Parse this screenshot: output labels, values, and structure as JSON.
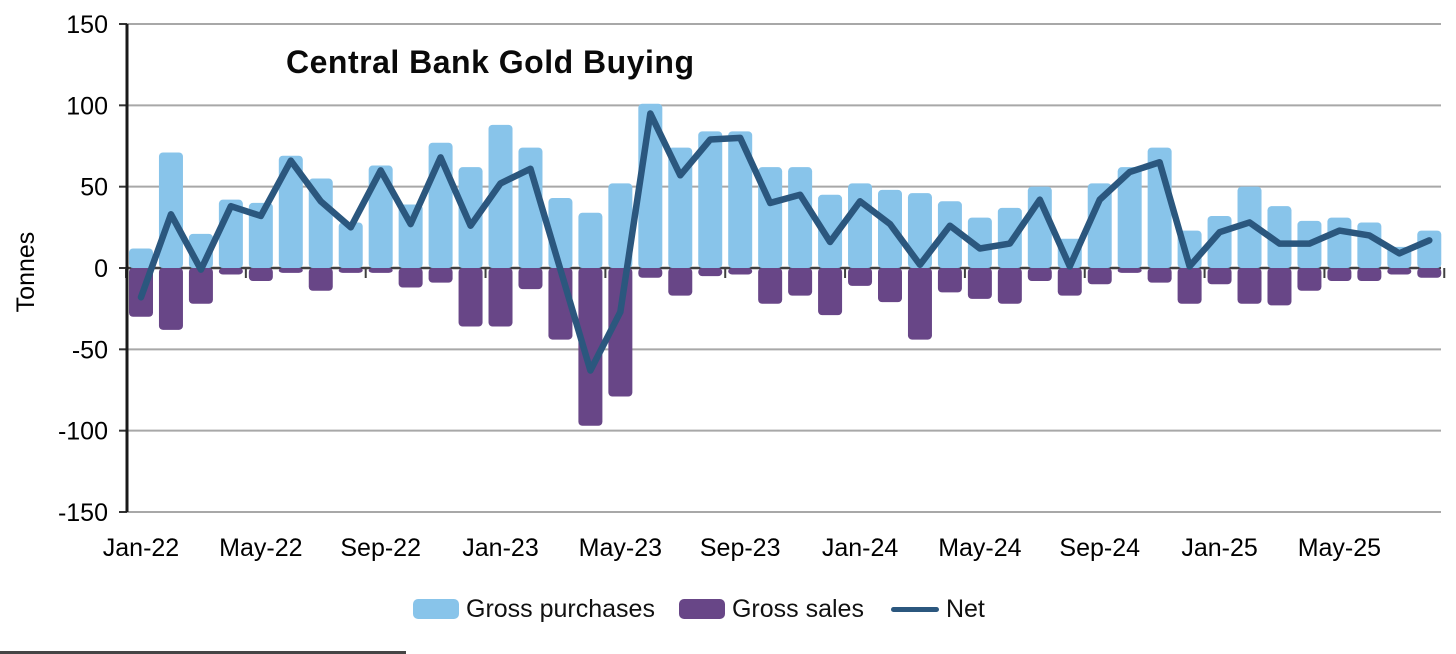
{
  "chart_data": {
    "type": "combo",
    "title": "Central Bank Gold Buying",
    "ylabel": "Tonnes",
    "ylim": [
      -150,
      150
    ],
    "yticks": [
      150,
      100,
      50,
      0,
      -50,
      -100,
      -150
    ],
    "grid": "horizontal",
    "legend_position": "bottom",
    "categories": [
      "Jan-22",
      "Feb-22",
      "Mar-22",
      "Apr-22",
      "May-22",
      "Jun-22",
      "Jul-22",
      "Aug-22",
      "Sep-22",
      "Oct-22",
      "Nov-22",
      "Dec-22",
      "Jan-23",
      "Feb-23",
      "Mar-23",
      "Apr-23",
      "May-23",
      "Jun-23",
      "Jul-23",
      "Aug-23",
      "Sep-23",
      "Oct-23",
      "Nov-23",
      "Dec-23",
      "Jan-24",
      "Feb-24",
      "Mar-24",
      "Apr-24",
      "May-24",
      "Jun-24",
      "Jul-24",
      "Aug-24",
      "Sep-24",
      "Oct-24",
      "Nov-24",
      "Dec-24",
      "Jan-25",
      "Feb-25",
      "Mar-25",
      "Apr-25",
      "May-25",
      "Jun-25",
      "Jul-25",
      "Aug-25"
    ],
    "xtick_labels": [
      "Jan-22",
      "May-22",
      "Sep-22",
      "Jan-23",
      "May-23",
      "Sep-23",
      "Jan-24",
      "May-24",
      "Sep-24",
      "Jan-25",
      "May-25"
    ],
    "series": [
      {
        "name": "Gross purchases",
        "type": "bar",
        "color": "#88C4EA",
        "values": [
          12,
          71,
          21,
          42,
          40,
          69,
          55,
          28,
          63,
          39,
          77,
          62,
          88,
          74,
          43,
          34,
          52,
          101,
          74,
          84,
          84,
          62,
          62,
          45,
          52,
          48,
          46,
          41,
          31,
          37,
          50,
          18,
          52,
          62,
          74,
          23,
          32,
          50,
          38,
          29,
          31,
          28,
          13,
          23
        ]
      },
      {
        "name": "Gross sales",
        "type": "bar",
        "color": "#684687",
        "values": [
          -30,
          -38,
          -22,
          -4,
          -8,
          -3,
          -14,
          -3,
          -3,
          -12,
          -9,
          -36,
          -36,
          -13,
          -44,
          -97,
          -79,
          -6,
          -17,
          -5,
          -4,
          -22,
          -17,
          -29,
          -11,
          -21,
          -44,
          -15,
          -19,
          -22,
          -8,
          -17,
          -10,
          -3,
          -9,
          -22,
          -10,
          -22,
          -23,
          -14,
          -8,
          -8,
          -4,
          -6
        ]
      },
      {
        "name": "Net",
        "type": "line",
        "color": "#2B577E",
        "values": [
          -18,
          33,
          -1,
          38,
          32,
          66,
          41,
          25,
          60,
          27,
          68,
          26,
          52,
          61,
          -1,
          -63,
          -27,
          95,
          57,
          79,
          80,
          40,
          45,
          16,
          41,
          27,
          2,
          26,
          12,
          15,
          42,
          1,
          42,
          59,
          65,
          1,
          22,
          28,
          15,
          15,
          23,
          20,
          9,
          17
        ]
      }
    ],
    "colors": {
      "gridline": "#A8A8A8",
      "zero_line": "#404040",
      "axis": "#1A1A1A",
      "text": "#000000",
      "background": "#FFFFFF"
    }
  }
}
